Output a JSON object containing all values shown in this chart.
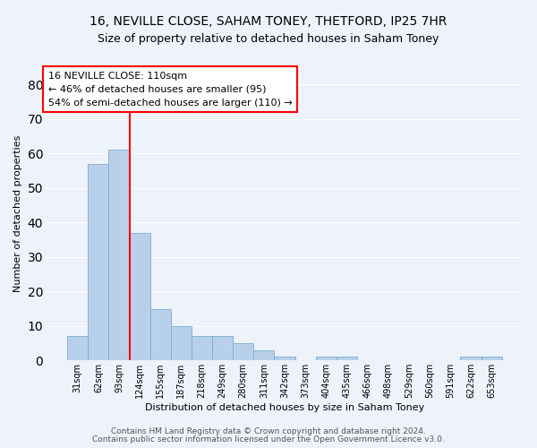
{
  "title_line1": "16, NEVILLE CLOSE, SAHAM TONEY, THETFORD, IP25 7HR",
  "title_line2": "Size of property relative to detached houses in Saham Toney",
  "xlabel": "Distribution of detached houses by size in Saham Toney",
  "ylabel": "Number of detached properties",
  "categories": [
    "31sqm",
    "62sqm",
    "93sqm",
    "124sqm",
    "155sqm",
    "187sqm",
    "218sqm",
    "249sqm",
    "280sqm",
    "311sqm",
    "342sqm",
    "373sqm",
    "404sqm",
    "435sqm",
    "466sqm",
    "498sqm",
    "529sqm",
    "560sqm",
    "591sqm",
    "622sqm",
    "653sqm"
  ],
  "values": [
    7,
    57,
    61,
    37,
    15,
    10,
    7,
    7,
    5,
    3,
    1,
    0,
    1,
    1,
    0,
    0,
    0,
    0,
    0,
    1,
    1
  ],
  "bar_color": "#b8d0ea",
  "bar_edge_color": "#7aacd4",
  "vline_x": 2.5,
  "vline_color": "red",
  "annotation_line1": "16 NEVILLE CLOSE: 110sqm",
  "annotation_line2": "← 46% of detached houses are smaller (95)",
  "annotation_line3": "54% of semi-detached houses are larger (110) →",
  "ylim": [
    0,
    85
  ],
  "yticks": [
    0,
    10,
    20,
    30,
    40,
    50,
    60,
    70,
    80
  ],
  "footer_line1": "Contains HM Land Registry data © Crown copyright and database right 2024.",
  "footer_line2": "Contains public sector information licensed under the Open Government Licence v3.0.",
  "background_color": "#eef2fb",
  "grid_color": "#ffffff",
  "title_fontsize": 10,
  "subtitle_fontsize": 9,
  "annotation_fontsize": 8,
  "axis_label_fontsize": 8,
  "tick_fontsize": 7,
  "footer_fontsize": 6.5
}
